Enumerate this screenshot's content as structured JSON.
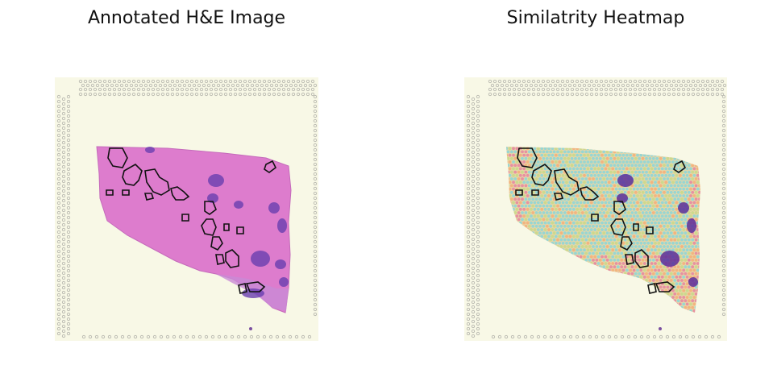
{
  "figure": {
    "left_panel": {
      "title": "Annotated H&E Image"
    },
    "right_panel": {
      "title": "Similatrity Heatmap"
    }
  },
  "colors": {
    "slide_background": "#f8f8e6",
    "tissue_pink": "#df7fcf",
    "tissue_dark": "#b654b4",
    "nuclei_purple": "#6a3fb0",
    "annotation_outline": "#111111",
    "heatmap_low": "#8fd6d6",
    "heatmap_mid": "#c9d98a",
    "heatmap_high": "#f4b07a",
    "heatmap_hot": "#e78aa0"
  }
}
